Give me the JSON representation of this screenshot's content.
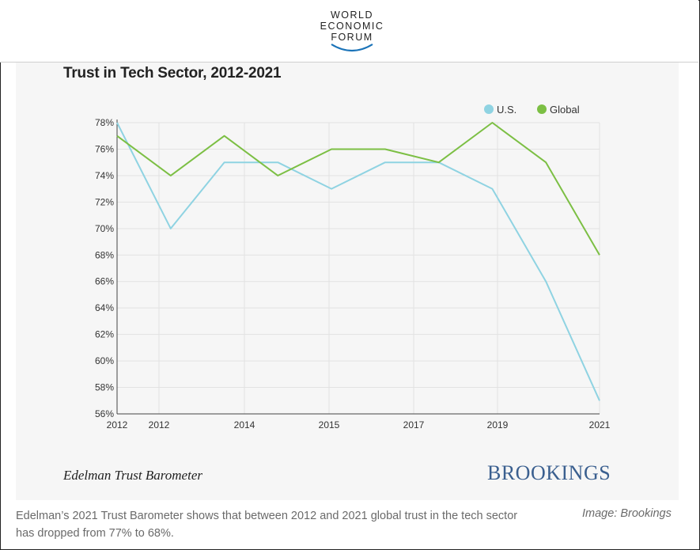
{
  "header": {
    "logo_lines": [
      "WORLD",
      "ECONOMIC",
      "FORUM"
    ]
  },
  "figure": {
    "source_note": "Edelman Trust Barometer",
    "brand": "BROOKINGS"
  },
  "caption": {
    "text": "Edelman’s 2021 Trust Barometer shows that between 2012 and 2021 global trust in the tech sector has dropped from 77% to 68%.",
    "credit": "Image: Brookings"
  },
  "colors": {
    "us": "#8fd3e2",
    "global": "#7cbf44",
    "brand": "#3a5f8f"
  },
  "chart_data": {
    "type": "line",
    "title": "Trust in Tech Sector, 2012-2021",
    "xlabel": "",
    "ylabel": "",
    "x_tick_labels": [
      "2012",
      "2012",
      "2014",
      "2015",
      "2017",
      "2019",
      "2021"
    ],
    "y_ticks": [
      56,
      58,
      60,
      62,
      64,
      66,
      68,
      70,
      72,
      74,
      76,
      78
    ],
    "y_tick_labels": [
      "56%",
      "58%",
      "60%",
      "62%",
      "64%",
      "66%",
      "68%",
      "70%",
      "72%",
      "74%",
      "76%",
      "78%"
    ],
    "ylim": [
      56,
      78
    ],
    "grid": true,
    "legend_position": "top-right",
    "series": [
      {
        "name": "U.S.",
        "values": [
          78,
          70,
          75,
          75,
          73,
          75,
          75,
          73,
          66,
          57
        ]
      },
      {
        "name": "Global",
        "values": [
          77,
          74,
          77,
          74,
          76,
          76,
          75,
          78,
          75,
          68
        ]
      }
    ]
  }
}
